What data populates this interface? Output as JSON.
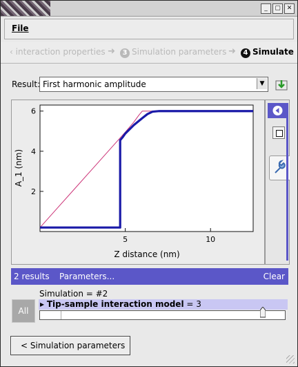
{
  "window": {
    "controls": {
      "minimize": "_",
      "maximize": "▢",
      "close": "✕"
    }
  },
  "menubar": {
    "file_label": "File"
  },
  "steps": {
    "step2_label": "interaction properties",
    "step3_number": "3",
    "step3_label": "Simulation parameters",
    "step4_number": "4",
    "step4_label": "Simulate"
  },
  "result": {
    "label": "Result:",
    "selected": "First harmonic amplitude"
  },
  "chart_data": {
    "type": "line",
    "xlabel": "Z distance (nm)",
    "ylabel": "A_1 (nm)",
    "xlim": [
      0,
      12.5
    ],
    "ylim": [
      0,
      6.3
    ],
    "xticks": [
      5,
      10
    ],
    "yticks": [
      2,
      4,
      6
    ],
    "series": [
      {
        "color": "#cc3377",
        "x": [
          0,
          1,
          2,
          3,
          4,
          5,
          5.5,
          5.8,
          6.0,
          12.5
        ],
        "y": [
          0.2,
          1.15,
          2.1,
          3.05,
          4.0,
          4.95,
          5.45,
          5.8,
          6.0,
          6.0
        ]
      },
      {
        "color": "#1a1aa8",
        "x": [
          0,
          4.7,
          4.7,
          4.85,
          5.0,
          5.5,
          6.0,
          6.3,
          6.6,
          7.0,
          12.5
        ],
        "y": [
          0.2,
          0.2,
          4.55,
          4.7,
          4.88,
          5.3,
          5.65,
          5.85,
          5.97,
          6.0,
          6.0
        ]
      }
    ]
  },
  "side": {},
  "results_bar": {
    "count": "2 results",
    "params": "Parameters...",
    "clear": "Clear"
  },
  "simulation": {
    "label": "Simulation = #2",
    "all": "All",
    "param": "Tip-sample interaction model",
    "param_value": "= 3",
    "slider_fraction": 0.92
  },
  "back_button": {
    "label": "< Simulation parameters"
  }
}
